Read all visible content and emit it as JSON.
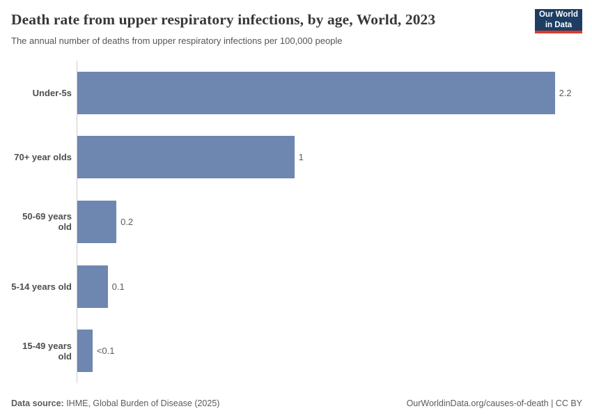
{
  "header": {
    "title": "Death rate from upper respiratory infections, by age, World, 2023",
    "subtitle": "The annual number of deaths from upper respiratory infections per 100,000 people"
  },
  "logo": {
    "line1": "Our World",
    "line2": "in Data",
    "bg_color": "#1d3d63",
    "accent_color": "#dc3a2e",
    "text_color": "#ffffff"
  },
  "chart_data": {
    "type": "bar",
    "orientation": "horizontal",
    "title": "Death rate from upper respiratory infections, by age, World, 2023",
    "xlabel": "",
    "ylabel": "",
    "categories": [
      "Under-5s",
      "70+ year olds",
      "50-69 years old",
      "5-14 years old",
      "15-49 years old"
    ],
    "values": [
      2.2,
      1.0,
      0.18,
      0.14,
      0.07
    ],
    "display_values": [
      "2.2",
      "1",
      "0.2",
      "0.1",
      "<0.1"
    ],
    "xlim": [
      0,
      2.32
    ],
    "grid": false,
    "legend": false,
    "bar_color": "#6e87b0",
    "axis_color": "#cdcdcd"
  },
  "footer": {
    "source_label": "Data source:",
    "source_text": " IHME, Global Burden of Disease (2025)",
    "credit": "OurWorldinData.org/causes-of-death | CC BY"
  }
}
